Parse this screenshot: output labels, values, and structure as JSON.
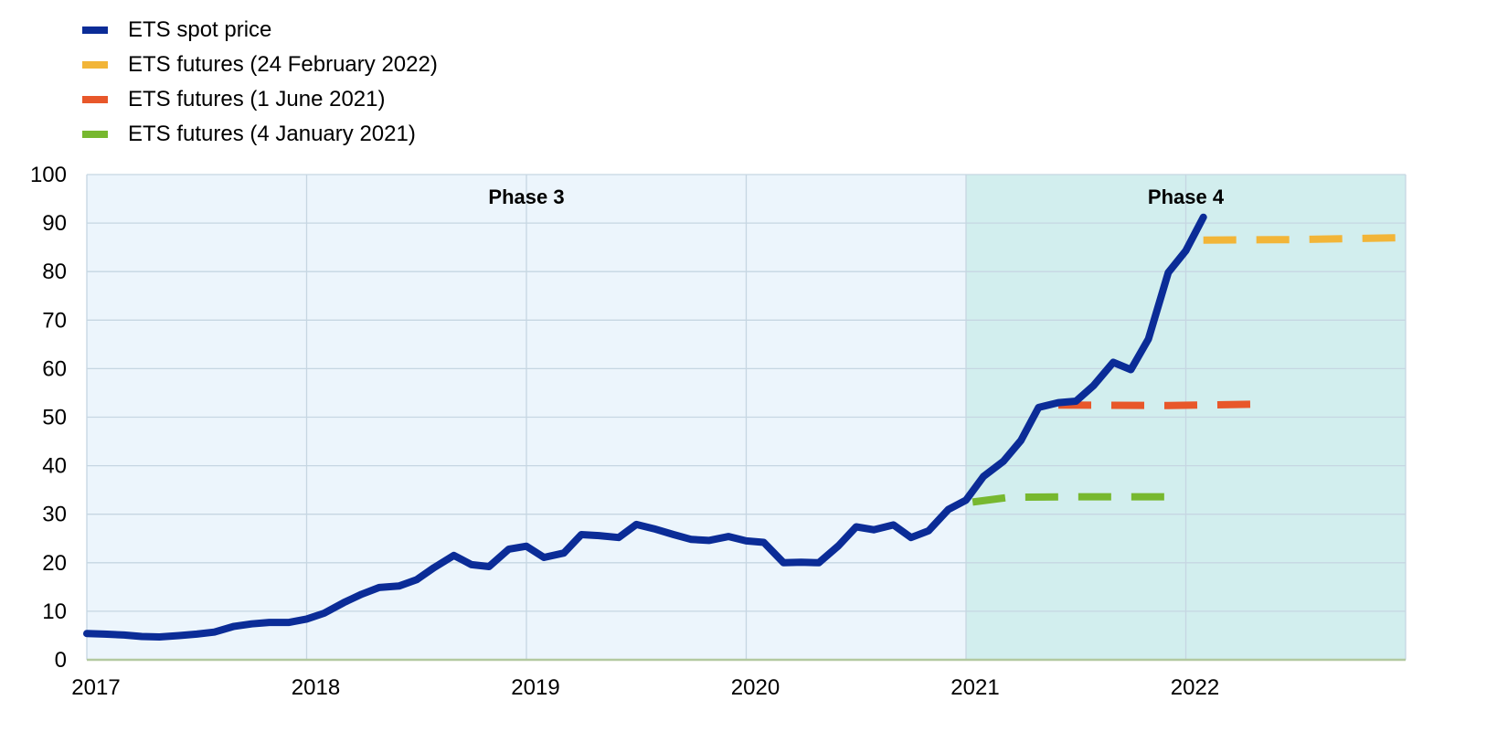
{
  "legend": [
    {
      "label": "ETS spot price",
      "color": "#0b2c97"
    },
    {
      "label": "ETS futures (24 February 2022)",
      "color": "#f2b538"
    },
    {
      "label": "ETS futures (1 June 2021)",
      "color": "#e8572a"
    },
    {
      "label": "ETS futures (4 January 2021)",
      "color": "#77b82f"
    }
  ],
  "chart_data": {
    "type": "line",
    "xlim": [
      2017.0,
      2023.0
    ],
    "ylim": [
      0,
      100
    ],
    "xticks": [
      2017,
      2018,
      2019,
      2020,
      2021,
      2022
    ],
    "xtick_labels": [
      "2017",
      "2018",
      "2019",
      "2020",
      "2021",
      "2022"
    ],
    "yticks": [
      0,
      10,
      20,
      30,
      40,
      50,
      60,
      70,
      80,
      90,
      100
    ],
    "grid": true,
    "regions": [
      {
        "label": "Phase 3",
        "from": 2017.0,
        "to": 2021.0,
        "color": "#ecf5fc"
      },
      {
        "label": "Phase 4",
        "from": 2021.0,
        "to": 2023.0,
        "color": "#d2eeee"
      }
    ],
    "series": [
      {
        "name": "ETS spot price",
        "color": "#0b2c97",
        "style": "solid",
        "x": [
          2017.0,
          2017.08,
          2017.17,
          2017.25,
          2017.33,
          2017.42,
          2017.5,
          2017.58,
          2017.67,
          2017.75,
          2017.83,
          2017.92,
          2018.0,
          2018.08,
          2018.17,
          2018.25,
          2018.33,
          2018.42,
          2018.5,
          2018.58,
          2018.67,
          2018.75,
          2018.83,
          2018.92,
          2019.0,
          2019.08,
          2019.17,
          2019.25,
          2019.33,
          2019.42,
          2019.5,
          2019.58,
          2019.67,
          2019.75,
          2019.83,
          2019.92,
          2020.0,
          2020.08,
          2020.17,
          2020.25,
          2020.33,
          2020.42,
          2020.5,
          2020.58,
          2020.67,
          2020.75,
          2020.83,
          2020.92,
          2021.0,
          2021.08,
          2021.17,
          2021.25,
          2021.33,
          2021.42,
          2021.5,
          2021.58,
          2021.67,
          2021.75,
          2021.83,
          2021.92,
          2022.0,
          2022.08
        ],
        "values": [
          5.4,
          5.3,
          5.1,
          4.8,
          4.7,
          5.0,
          5.3,
          5.7,
          6.9,
          7.4,
          7.7,
          7.7,
          8.4,
          9.6,
          11.8,
          13.5,
          14.9,
          15.2,
          16.5,
          19.0,
          21.5,
          19.6,
          19.2,
          22.8,
          23.4,
          21.1,
          22.0,
          25.8,
          25.6,
          25.2,
          27.9,
          27.0,
          25.8,
          24.8,
          24.6,
          25.4,
          24.5,
          24.2,
          20.0,
          20.1,
          20.0,
          23.5,
          27.4,
          26.8,
          27.8,
          25.2,
          26.6,
          31.0,
          32.9,
          37.8,
          40.9,
          45.2,
          52.0,
          53.0,
          53.3,
          56.5,
          61.3,
          59.8,
          66.1,
          79.8,
          84.3,
          91.2
        ]
      },
      {
        "name": "ETS futures (24 February 2022)",
        "color": "#f2b538",
        "style": "dashed",
        "x": [
          2022.08,
          2022.5,
          2023.0
        ],
        "values": [
          86.5,
          86.6,
          87.0
        ]
      },
      {
        "name": "ETS futures (1 June 2021)",
        "color": "#e8572a",
        "style": "dashed",
        "x": [
          2021.42,
          2021.92,
          2022.35
        ],
        "values": [
          52.5,
          52.4,
          52.7
        ]
      },
      {
        "name": "ETS futures (4 January 2021)",
        "color": "#77b82f",
        "style": "dashed",
        "x": [
          2021.03,
          2021.2,
          2021.5,
          2021.95
        ],
        "values": [
          32.5,
          33.5,
          33.6,
          33.6
        ]
      }
    ]
  }
}
